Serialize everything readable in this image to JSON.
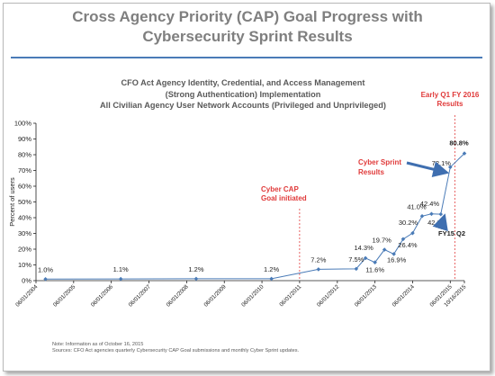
{
  "slide": {
    "title_line1": "Cross Agency Priority (CAP) Goal Progress with",
    "title_line2": "Cybersecurity Sprint Results",
    "footnote_line1": "Note: Information as of October 16, 2015",
    "footnote_line2": "Sources: CFO Act agencies quarterly Cybersecurity CAP Goal submissions and monthly Cyber Sprint updates."
  },
  "colors": {
    "series": "#4a7bb7",
    "annotation": "#e03a3a",
    "title": "#7f7f7f",
    "arrow": "#3f6fb0"
  },
  "chart_data": {
    "type": "line",
    "title_lines": [
      "CFO Act Agency Identity, Credential, and Access Management",
      "(Strong Authentication) Implementation",
      "All Civilian Agency User Network Accounts (Privileged and Unprivileged)"
    ],
    "ylabel": "Percent of users",
    "xlabel": "",
    "ylim": [
      0,
      100
    ],
    "y_ticks": [
      "0%",
      "10%",
      "20%",
      "30%",
      "40%",
      "50%",
      "60%",
      "70%",
      "80%",
      "90%",
      "100%"
    ],
    "x_tick_labels": [
      "06/01/2004",
      "06/01/2005",
      "06/01/2006",
      "06/01/2007",
      "06/01/2008",
      "06/01/2009",
      "06/01/2010",
      "06/01/2011",
      "06/01/2012",
      "06/01/2013",
      "06/01/2014",
      "06/01/2015",
      "10/16/2015"
    ],
    "grid": false,
    "points": [
      {
        "date": "2004-09-01",
        "value": 1.0,
        "label": "1.0%"
      },
      {
        "date": "2006-09-01",
        "value": 1.1,
        "label": "1.1%"
      },
      {
        "date": "2008-09-01",
        "value": 1.2,
        "label": "1.2%"
      },
      {
        "date": "2010-09-01",
        "value": 1.2,
        "label": "1.2%"
      },
      {
        "date": "2011-12-01",
        "value": 7.2,
        "label": "7.2%"
      },
      {
        "date": "2012-12-01",
        "value": 7.5,
        "label": "7.5%"
      },
      {
        "date": "2013-03-01",
        "value": 14.3,
        "label": "14.3%"
      },
      {
        "date": "2013-06-01",
        "value": 11.6,
        "label": "11.6%"
      },
      {
        "date": "2013-09-01",
        "value": 19.7,
        "label": "19.7%"
      },
      {
        "date": "2013-12-01",
        "value": 16.9,
        "label": "16.9%"
      },
      {
        "date": "2014-03-01",
        "value": 26.4,
        "label": "26.4%"
      },
      {
        "date": "2014-06-01",
        "value": 30.2,
        "label": "30.2%"
      },
      {
        "date": "2014-09-01",
        "value": 41.0,
        "label": "41.0%"
      },
      {
        "date": "2014-12-01",
        "value": 42.4,
        "label": "42.4%"
      },
      {
        "date": "2015-03-01",
        "value": 42.2,
        "label": "42.2%"
      },
      {
        "date": "2015-06-01",
        "value": 72.1,
        "label": "72.1%"
      },
      {
        "date": "2015-10-16",
        "value": 80.8,
        "label": "80.8%"
      }
    ],
    "annotations": [
      {
        "text_lines": [
          "Cyber CAP",
          "Goal initiated"
        ],
        "date": "2011-06-01",
        "style": "red-dashed-line"
      },
      {
        "text_lines": [
          "Early Q1 FY 2016",
          "Results"
        ],
        "date": "2015-07-15",
        "style": "red-dashed-line"
      },
      {
        "text_lines": [
          "Cyber Sprint",
          "Results"
        ],
        "points_to": "72.1%"
      },
      {
        "text_lines": [
          "FY15 Q2"
        ],
        "points_to": "42.2%"
      }
    ]
  }
}
